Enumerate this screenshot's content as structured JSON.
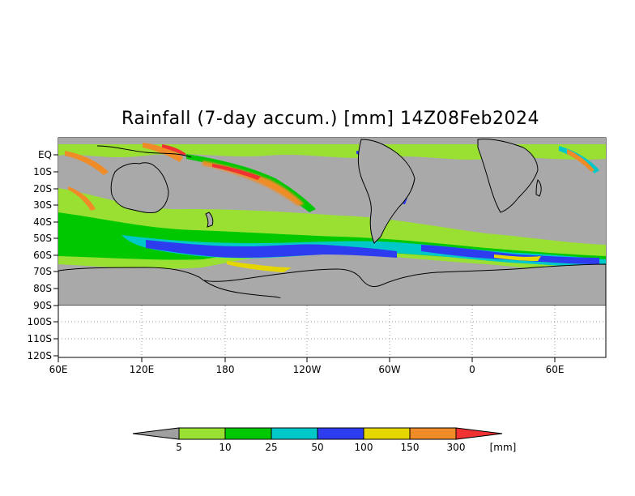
{
  "title": "Rainfall (7-day accum.) [mm] 14Z08Feb2024",
  "map": {
    "y_tick_labels": [
      "EQ",
      "10S",
      "20S",
      "30S",
      "40S",
      "50S",
      "60S",
      "70S",
      "80S",
      "90S",
      "100S",
      "110S",
      "120S"
    ],
    "x_tick_labels": [
      "60E",
      "120E",
      "180",
      "120W",
      "60W",
      "0",
      "60E"
    ],
    "land_color": "#a9a9a9",
    "ocean_color": "#a9a9a9",
    "coastline_color": "#000000",
    "grid_style": "dotted"
  },
  "colorbar": {
    "unit": "[mm]",
    "tick_labels": [
      "5",
      "10",
      "25",
      "50",
      "100",
      "150",
      "300"
    ],
    "colors": [
      "#a0a0a0",
      "#99e033",
      "#00c800",
      "#00c8c8",
      "#2e3cf0",
      "#e6d600",
      "#f08c28",
      "#f03232"
    ]
  }
}
